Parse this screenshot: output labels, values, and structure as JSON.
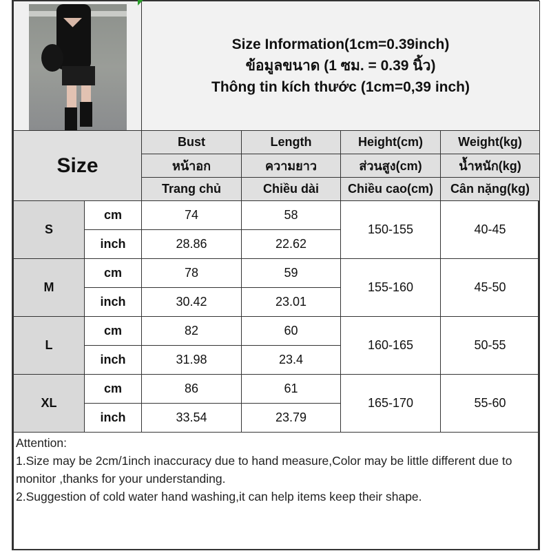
{
  "header": {
    "title_lines": [
      "Size Information(1cm=0.39inch)",
      "ข้อมูลขนาด (1 ซม. = 0.39 นิ้ว)",
      "Thông tin kích thước (1cm=0,39 inch)"
    ]
  },
  "table": {
    "size_label": "Size",
    "columns": [
      {
        "en": "Bust",
        "th": "หน้าอก",
        "vi": "Trang chủ"
      },
      {
        "en": "Length",
        "th": "ความยาว",
        "vi": "Chiều dài"
      },
      {
        "en": "Height(cm)",
        "th": "ส่วนสูง(cm)",
        "vi": "Chiều cao(cm)"
      },
      {
        "en": "Weight(kg)",
        "th": "น้ำหนัก(kg)",
        "vi": "Cân nặng(kg)"
      }
    ],
    "units": {
      "cm": "cm",
      "inch": "inch"
    },
    "rows": [
      {
        "size": "S",
        "bust_cm": "74",
        "length_cm": "58",
        "bust_inch": "28.86",
        "length_inch": "22.62",
        "height": "150-155",
        "weight": "40-45"
      },
      {
        "size": "M",
        "bust_cm": "78",
        "length_cm": "59",
        "bust_inch": "30.42",
        "length_inch": "23.01",
        "height": "155-160",
        "weight": "45-50"
      },
      {
        "size": "L",
        "bust_cm": "82",
        "length_cm": "60",
        "bust_inch": "31.98",
        "length_inch": "23.4",
        "height": "160-165",
        "weight": "50-55"
      },
      {
        "size": "XL",
        "bust_cm": "86",
        "length_cm": "61",
        "bust_inch": "33.54",
        "length_inch": "23.79",
        "height": "165-170",
        "weight": "55-60"
      }
    ]
  },
  "attention": {
    "title": "Attention:",
    "line1": "1.Size may be 2cm/1inch inaccuracy due to hand measure,Color may be little different due to monitor ,thanks for your understanding.",
    "line2": "2.Suggestion of cold water hand washing,it can help items keep their shape."
  }
}
